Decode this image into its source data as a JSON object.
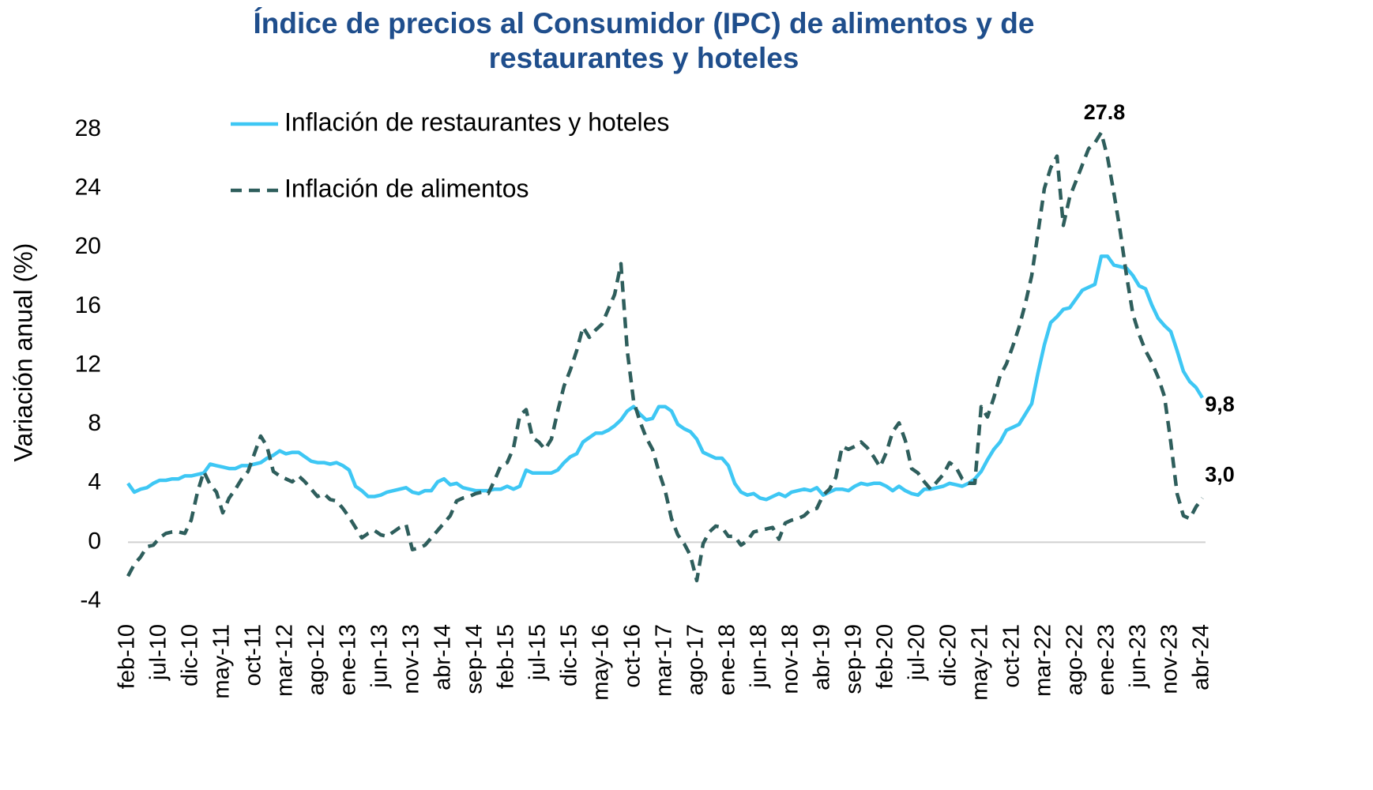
{
  "chart_data": {
    "type": "line",
    "title": "Índice de precios al Consumidor (IPC) de alimentos y de restaurantes y hoteles",
    "ylabel": "Variación anual (%)",
    "categories": [
      "feb-10",
      null,
      null,
      null,
      null,
      "jul-10",
      null,
      null,
      null,
      null,
      "dic-10",
      null,
      null,
      null,
      null,
      "may-11",
      null,
      null,
      null,
      null,
      "oct-11",
      null,
      null,
      null,
      null,
      "mar-12",
      null,
      null,
      null,
      null,
      "ago-12",
      null,
      null,
      null,
      null,
      "ene-13",
      null,
      null,
      null,
      null,
      "jun-13",
      null,
      null,
      null,
      null,
      "nov-13",
      null,
      null,
      null,
      null,
      "abr-14",
      null,
      null,
      null,
      null,
      "sep-14",
      null,
      null,
      null,
      null,
      "feb-15",
      null,
      null,
      null,
      null,
      "jul-15",
      null,
      null,
      null,
      null,
      "dic-15",
      null,
      null,
      null,
      null,
      "may-16",
      null,
      null,
      null,
      null,
      "oct-16",
      null,
      null,
      null,
      null,
      "mar-17",
      null,
      null,
      null,
      null,
      "ago-17",
      null,
      null,
      null,
      null,
      "ene-18",
      null,
      null,
      null,
      null,
      "jun-18",
      null,
      null,
      null,
      null,
      "nov-18",
      null,
      null,
      null,
      null,
      "abr-19",
      null,
      null,
      null,
      null,
      "sep-19",
      null,
      null,
      null,
      null,
      "feb-20",
      null,
      null,
      null,
      null,
      "jul-20",
      null,
      null,
      null,
      null,
      "dic-20",
      null,
      null,
      null,
      null,
      "may-21",
      null,
      null,
      null,
      null,
      "oct-21",
      null,
      null,
      null,
      null,
      "mar-22",
      null,
      null,
      null,
      null,
      "ago-22",
      null,
      null,
      null,
      null,
      "ene-23",
      null,
      null,
      null,
      null,
      "jun-23",
      null,
      null,
      null,
      null,
      "nov-23",
      null,
      null,
      null,
      null,
      "abr-24"
    ],
    "series": [
      {
        "name": "Inflación de restaurantes y hoteles",
        "color": "#3ec7f4",
        "dash": false,
        "values": [
          4.0,
          3.4,
          3.6,
          3.7,
          4.0,
          4.2,
          4.2,
          4.3,
          4.3,
          4.5,
          4.5,
          4.6,
          4.7,
          5.3,
          5.2,
          5.1,
          5.0,
          5.0,
          5.2,
          5.2,
          5.3,
          5.4,
          5.7,
          5.9,
          6.2,
          6.0,
          6.1,
          6.1,
          5.8,
          5.5,
          5.4,
          5.4,
          5.3,
          5.4,
          5.2,
          4.9,
          3.8,
          3.5,
          3.1,
          3.1,
          3.2,
          3.4,
          3.5,
          3.6,
          3.7,
          3.4,
          3.3,
          3.5,
          3.5,
          4.1,
          4.3,
          3.9,
          4.0,
          3.7,
          3.6,
          3.5,
          3.5,
          3.5,
          3.6,
          3.6,
          3.8,
          3.6,
          3.8,
          4.9,
          4.7,
          4.7,
          4.7,
          4.7,
          4.9,
          5.4,
          5.8,
          6.0,
          6.8,
          7.1,
          7.4,
          7.4,
          7.6,
          7.9,
          8.3,
          8.9,
          9.2,
          8.7,
          8.3,
          8.4,
          9.2,
          9.2,
          8.9,
          8.0,
          7.7,
          7.5,
          7.0,
          6.1,
          5.9,
          5.7,
          5.7,
          5.2,
          4.0,
          3.4,
          3.2,
          3.3,
          3.0,
          2.9,
          3.1,
          3.3,
          3.1,
          3.4,
          3.5,
          3.6,
          3.5,
          3.7,
          3.2,
          3.4,
          3.6,
          3.6,
          3.5,
          3.8,
          4.0,
          3.9,
          4.0,
          4.0,
          3.8,
          3.5,
          3.8,
          3.5,
          3.3,
          3.2,
          3.6,
          3.6,
          3.7,
          3.8,
          4.0,
          3.9,
          3.8,
          4.0,
          4.3,
          4.8,
          5.6,
          6.3,
          6.8,
          7.6,
          7.8,
          8.0,
          8.7,
          9.4,
          11.5,
          13.4,
          14.9,
          15.3,
          15.8,
          15.9,
          16.5,
          17.1,
          17.3,
          17.5,
          19.4,
          19.4,
          18.8,
          18.7,
          18.6,
          18.1,
          17.4,
          17.2,
          16.1,
          15.2,
          14.7,
          14.3,
          13.0,
          11.6,
          10.9,
          10.5,
          9.8
        ],
        "value_labels": [
          null,
          null,
          null,
          null,
          null,
          null,
          null,
          null,
          null,
          null,
          null,
          null,
          null,
          null,
          null,
          null,
          null,
          null,
          null,
          null,
          null,
          null,
          null,
          null,
          null,
          null,
          null,
          null,
          null,
          null,
          null,
          null,
          null,
          null,
          null,
          null,
          null,
          null,
          null,
          null,
          null,
          null,
          null,
          null,
          null,
          null,
          null,
          null,
          null,
          null,
          null,
          null,
          null,
          null,
          null,
          null,
          null,
          null,
          null,
          null,
          null,
          null,
          null,
          null,
          null,
          null,
          null,
          null,
          null,
          null,
          null,
          null,
          null,
          null,
          null,
          null,
          null,
          null,
          null,
          null,
          null,
          null,
          null,
          null,
          null,
          null,
          null,
          null,
          null,
          null,
          null,
          null,
          null,
          null,
          null,
          null,
          null,
          null,
          null,
          null,
          null,
          null,
          null,
          null,
          null,
          null,
          null,
          null,
          null,
          null,
          null,
          null,
          null,
          null,
          null,
          null,
          null,
          null,
          null,
          null,
          null,
          null,
          null,
          null,
          null,
          null,
          null,
          null,
          null,
          null,
          null,
          null,
          null,
          null,
          null,
          null,
          null,
          null,
          null,
          null,
          null,
          null,
          null,
          null,
          null,
          null,
          null,
          null,
          null,
          null,
          null,
          null,
          null,
          null,
          null,
          null,
          null,
          null,
          null,
          null,
          null,
          null,
          null,
          null,
          null,
          null,
          null,
          null,
          null,
          null,
          "9,8"
        ]
      },
      {
        "name": "Inflación de alimentos",
        "color": "#2e5e5c",
        "dash": true,
        "values": [
          -2.3,
          -1.5,
          -1.0,
          -0.3,
          -0.2,
          0.3,
          0.6,
          0.7,
          0.7,
          0.6,
          1.5,
          3.4,
          4.8,
          3.9,
          3.4,
          2.0,
          3.0,
          3.6,
          4.3,
          4.8,
          6.0,
          7.2,
          6.5,
          4.8,
          4.5,
          4.3,
          4.1,
          4.5,
          4.1,
          3.6,
          3.1,
          3.3,
          2.9,
          2.8,
          2.3,
          1.7,
          1.0,
          0.3,
          0.6,
          0.8,
          0.5,
          0.4,
          0.7,
          1.0,
          1.2,
          -0.5,
          -0.4,
          -0.2,
          0.3,
          0.8,
          1.3,
          1.8,
          2.8,
          3.0,
          3.1,
          3.3,
          3.4,
          3.3,
          4.2,
          5.2,
          5.4,
          6.4,
          8.6,
          9.0,
          7.1,
          6.8,
          6.3,
          7.0,
          8.9,
          10.6,
          11.7,
          13.0,
          14.6,
          13.9,
          14.4,
          14.8,
          15.8,
          16.8,
          18.9,
          13.0,
          9.6,
          8.2,
          7.1,
          6.3,
          4.8,
          3.5,
          1.6,
          0.5,
          -0.1,
          -0.9,
          -2.6,
          -0.1,
          0.7,
          1.1,
          1.0,
          0.4,
          0.4,
          -0.2,
          0.1,
          0.7,
          0.8,
          0.9,
          1.0,
          0.2,
          1.3,
          1.5,
          1.6,
          1.8,
          2.2,
          2.3,
          3.2,
          3.6,
          4.4,
          6.5,
          6.3,
          6.5,
          6.8,
          6.4,
          5.8,
          5.1,
          6.1,
          7.5,
          8.1,
          6.9,
          5.0,
          4.7,
          4.1,
          3.6,
          4.1,
          4.6,
          5.4,
          5.1,
          4.3,
          4.0,
          4.0,
          9.2,
          8.5,
          9.8,
          11.3,
          12.1,
          13.3,
          14.6,
          16.2,
          18.1,
          21.0,
          24.0,
          25.4,
          26.2,
          21.5,
          23.4,
          24.5,
          25.6,
          26.7,
          27.1,
          27.8,
          26.1,
          23.7,
          21.1,
          18.1,
          15.5,
          14.1,
          13.0,
          12.2,
          11.2,
          9.9,
          6.8,
          3.3,
          1.8,
          1.6,
          2.4,
          3.0
        ],
        "value_labels": [
          null,
          null,
          null,
          null,
          null,
          null,
          null,
          null,
          null,
          null,
          null,
          null,
          null,
          null,
          null,
          null,
          null,
          null,
          null,
          null,
          null,
          null,
          null,
          null,
          null,
          null,
          null,
          null,
          null,
          null,
          null,
          null,
          null,
          null,
          null,
          null,
          null,
          null,
          null,
          null,
          null,
          null,
          null,
          null,
          null,
          null,
          null,
          null,
          null,
          null,
          null,
          null,
          null,
          null,
          null,
          null,
          null,
          null,
          null,
          null,
          null,
          null,
          null,
          null,
          null,
          null,
          null,
          null,
          null,
          null,
          null,
          null,
          null,
          null,
          null,
          null,
          null,
          null,
          null,
          null,
          null,
          null,
          null,
          null,
          null,
          null,
          null,
          null,
          null,
          null,
          null,
          null,
          null,
          null,
          null,
          null,
          null,
          null,
          null,
          null,
          null,
          null,
          null,
          null,
          null,
          null,
          null,
          null,
          null,
          null,
          null,
          null,
          null,
          null,
          null,
          null,
          null,
          null,
          null,
          null,
          null,
          null,
          null,
          null,
          null,
          null,
          null,
          null,
          null,
          null,
          null,
          null,
          null,
          null,
          null,
          null,
          null,
          null,
          null,
          null,
          null,
          null,
          null,
          null,
          null,
          null,
          null,
          null,
          null,
          null,
          null,
          null,
          null,
          null,
          "27.8",
          null,
          null,
          null,
          null,
          null,
          null,
          null,
          null,
          null,
          null,
          null,
          null,
          null,
          null,
          null,
          "3,0"
        ]
      }
    ],
    "ylim": [
      -4,
      28
    ],
    "yticks": [
      -4,
      0,
      4,
      8,
      12,
      16,
      20,
      24,
      28
    ],
    "grid": false,
    "legend": "top-left"
  }
}
